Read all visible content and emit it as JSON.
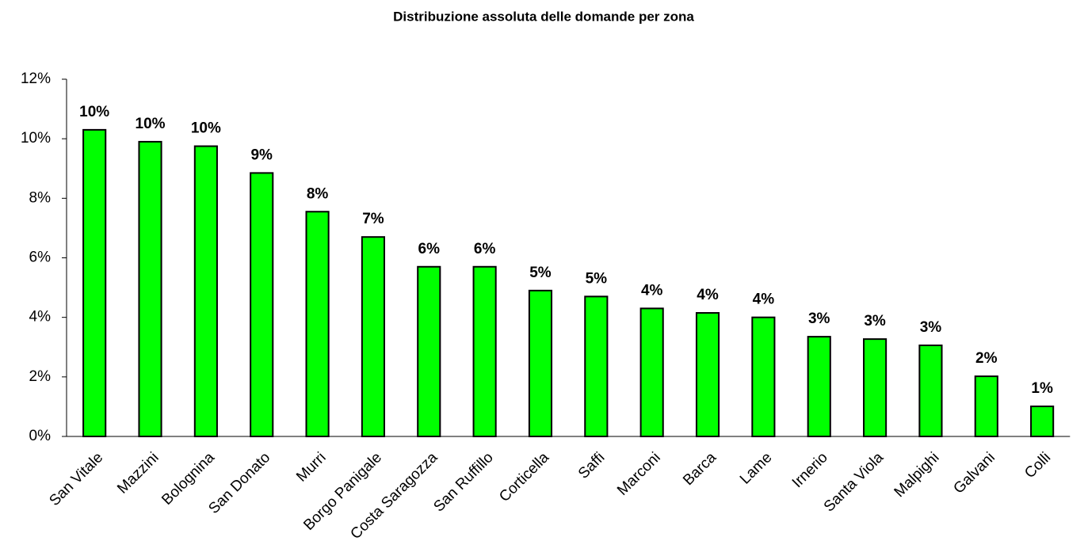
{
  "chart_data": {
    "type": "bar",
    "title": "Distribuzione assoluta delle domande per zona",
    "categories": [
      "San Vitale",
      "Mazzini",
      "Bolognina",
      "San Donato",
      "Murri",
      "Borgo Panigale",
      "Costa Saragozza",
      "San Ruffillo",
      "Corticella",
      "Saffi",
      "Marconi",
      "Barca",
      "Lame",
      "Irnerio",
      "Santa Viola",
      "Malpighi",
      "Galvani",
      "Colli"
    ],
    "values": [
      10.3,
      9.9,
      9.75,
      8.85,
      7.55,
      6.7,
      5.7,
      5.7,
      4.9,
      4.7,
      4.3,
      4.15,
      4.0,
      3.35,
      3.27,
      3.06,
      2.02,
      1.01
    ],
    "value_labels": [
      "10%",
      "10%",
      "10%",
      "9%",
      "8%",
      "7%",
      "6%",
      "6%",
      "5%",
      "5%",
      "4%",
      "4%",
      "4%",
      "3%",
      "3%",
      "3%",
      "2%",
      "1%"
    ],
    "color": "#00ff00",
    "ylim": [
      0,
      12
    ],
    "yticks": [
      {
        "value": 0,
        "label": "0%"
      },
      {
        "value": 2,
        "label": "2%"
      },
      {
        "value": 4,
        "label": "4%"
      },
      {
        "value": 6,
        "label": "6%"
      },
      {
        "value": 8,
        "label": "8%"
      },
      {
        "value": 10,
        "label": "10%"
      },
      {
        "value": 12,
        "label": "12%"
      }
    ],
    "grid": false
  }
}
